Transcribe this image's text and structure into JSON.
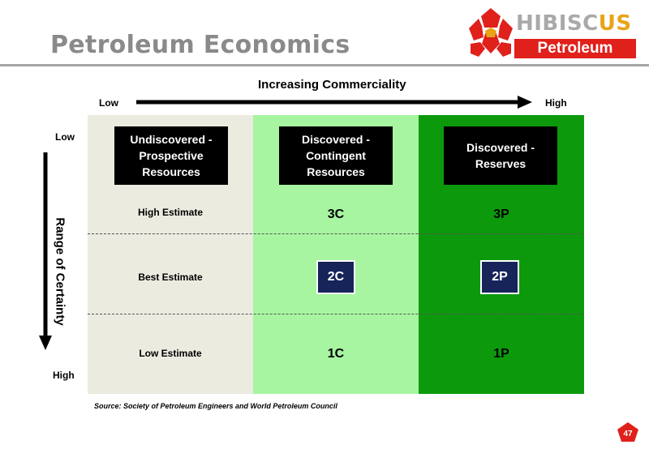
{
  "header": {
    "title": "Petroleum Economics",
    "logo": {
      "word_main": "Hibisc",
      "word_highlight": "us",
      "sub": "Petroleum",
      "colors": {
        "red": "#e0201b",
        "yellow": "#e8a317",
        "gray": "#a9a9a9"
      }
    }
  },
  "axis": {
    "x_title": "Increasing Commerciality",
    "x_low": "Low",
    "x_high": "High",
    "y_title": "Range of Certainty",
    "y_low": "Low",
    "y_high": "High"
  },
  "columns": [
    {
      "heading": "Undiscovered - Prospective Resources",
      "color": "#ecebe0"
    },
    {
      "heading": "Discovered - Contingent Resources",
      "color": "#a7f5a1"
    },
    {
      "heading": "Discovered - Reserves",
      "color": "#0c9a0c"
    }
  ],
  "rows": [
    {
      "label": "High Estimate",
      "contingent": "3C",
      "reserves": "3P"
    },
    {
      "label": "Best Estimate",
      "contingent": "2C",
      "reserves": "2P"
    },
    {
      "label": "Low Estimate",
      "contingent": "1C",
      "reserves": "1P"
    }
  ],
  "source": "Source: Society of Petroleum Engineers and World Petroleum Council",
  "page_number": "47",
  "colors": {
    "badge": "#17245a",
    "page_badge": "#e0201b"
  }
}
